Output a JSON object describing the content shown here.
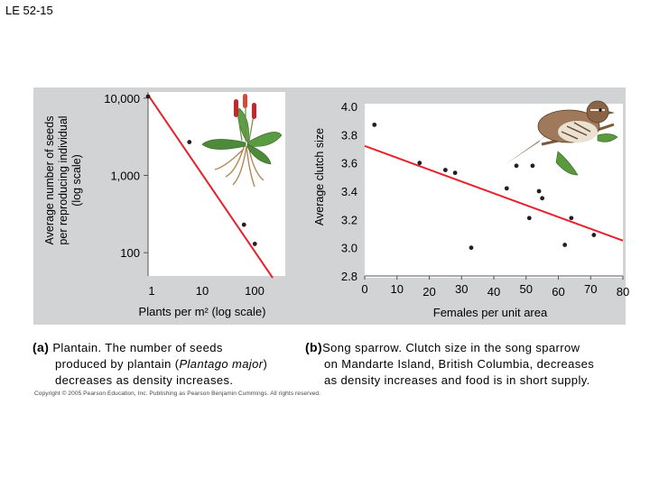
{
  "slide_title": "LE 52-15",
  "chart_data": [
    {
      "type": "scatter",
      "panel": "(a)",
      "xlabel": "Plants per m² (log scale)",
      "ylabel": [
        "Average number of seeds",
        "per reproducing individual",
        "(log scale)"
      ],
      "x_scale": "log",
      "y_scale": "log",
      "xlim": [
        1,
        100
      ],
      "ylim": [
        50,
        12000
      ],
      "x_ticks": [
        1,
        10,
        100
      ],
      "x_tick_labels": [
        "1",
        "10",
        "100"
      ],
      "y_ticks": [
        100,
        1000,
        10000
      ],
      "y_tick_labels": [
        "100",
        "1,000",
        "10,000"
      ],
      "points": [
        {
          "x": 1,
          "y": 10500
        },
        {
          "x": 4,
          "y": 2700
        },
        {
          "x": 25,
          "y": 230
        },
        {
          "x": 36,
          "y": 130
        }
      ],
      "trendline": {
        "x": [
          1,
          100
        ],
        "y": [
          11000,
          50
        ],
        "color": "#e8212c"
      },
      "grid": false
    },
    {
      "type": "scatter",
      "panel": "(b)",
      "xlabel": "Females per unit area",
      "ylabel": "Average clutch size",
      "xlim": [
        0,
        80
      ],
      "ylim": [
        2.8,
        4.0
      ],
      "x_ticks": [
        0,
        10,
        20,
        30,
        40,
        50,
        60,
        70,
        80
      ],
      "x_tick_labels": [
        "0",
        "10",
        "20",
        "30",
        "40",
        "50",
        "60",
        "70",
        "80"
      ],
      "y_ticks": [
        2.8,
        3.0,
        3.2,
        3.4,
        3.6,
        3.8,
        4.0
      ],
      "y_tick_labels": [
        "2.8",
        "3.0",
        "3.2",
        "3.4",
        "3.6",
        "3.8",
        "4.0"
      ],
      "points": [
        {
          "x": 3,
          "y": 3.87
        },
        {
          "x": 17,
          "y": 3.6
        },
        {
          "x": 25,
          "y": 3.55
        },
        {
          "x": 28,
          "y": 3.53
        },
        {
          "x": 33,
          "y": 3.0
        },
        {
          "x": 44,
          "y": 3.42
        },
        {
          "x": 47,
          "y": 3.58
        },
        {
          "x": 52,
          "y": 3.58
        },
        {
          "x": 54,
          "y": 3.4
        },
        {
          "x": 55,
          "y": 3.35
        },
        {
          "x": 51,
          "y": 3.21
        },
        {
          "x": 62,
          "y": 3.02
        },
        {
          "x": 64,
          "y": 3.21
        },
        {
          "x": 71,
          "y": 3.09
        }
      ],
      "trendline": {
        "x": [
          0,
          80
        ],
        "y": [
          3.72,
          3.05
        ],
        "color": "#e8212c"
      },
      "grid": false
    }
  ],
  "captions": {
    "a": {
      "label": "(a)",
      "line1": "Plantain. The number of seeds",
      "line2_pre": "produced by plantain (",
      "line2_italic": "Plantago major",
      "line2_post": ")",
      "line3": "decreases as density increases."
    },
    "b": {
      "label": "(b)",
      "line1": "Song sparrow. Clutch size in the song sparrow",
      "line2": "on Mandarte Island, British Columbia, decreases",
      "line3": "as density increases and food is in short supply."
    }
  },
  "copyright": "Copyright © 2005 Pearson Education, Inc. Publishing as Pearson Benjamin Cummings. All rights reserved.",
  "colors": {
    "panel_gray": "#d1d3d4",
    "trendline": "#e8212c",
    "point": "#231f20"
  }
}
